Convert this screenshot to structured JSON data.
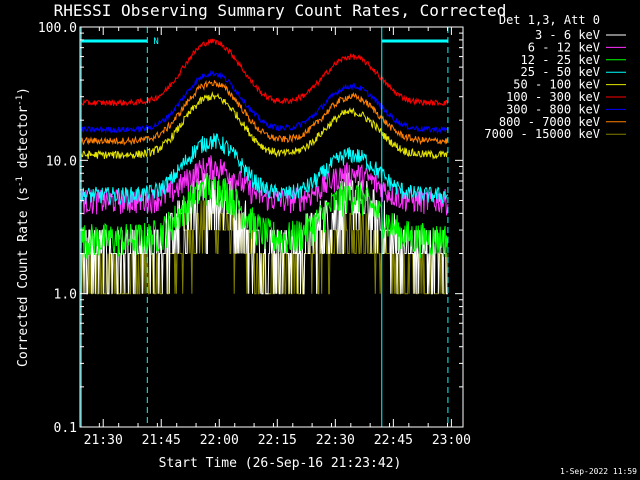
{
  "chart_data": {
    "type": "line",
    "title": "RHESSI Observing Summary Count Rates, Corrected",
    "xlabel": "Start Time (26-Sep-16 21:23:42)",
    "ylabel_main": "Corrected Count Rate (s",
    "ylabel_sup1": "-1",
    "ylabel_mid": " detector",
    "ylabel_sup2": "-1",
    "ylabel_end": ")",
    "y_scale": "log",
    "ylim": [
      0.1,
      100
    ],
    "xlim_minutes": [
      21.4,
      23.05
    ],
    "x_ticks": [
      {
        "label": "21:30",
        "value": 21.5
      },
      {
        "label": "21:45",
        "value": 21.75
      },
      {
        "label": "22:00",
        "value": 22.0
      },
      {
        "label": "22:15",
        "value": 22.25
      },
      {
        "label": "22:30",
        "value": 22.5
      },
      {
        "label": "22:45",
        "value": 22.75
      },
      {
        "label": "23:00",
        "value": 23.0
      }
    ],
    "y_ticks": [
      {
        "label": "100.0",
        "value": 100
      },
      {
        "label": "10.0",
        "value": 10
      },
      {
        "label": "1.0",
        "value": 1
      },
      {
        "label": "0.1",
        "value": 0.1
      }
    ],
    "legend_title": "Det 1,3, Att 0",
    "legend_position": "right",
    "date_stamp": "1-Sep-2022 11:59",
    "night_bar_label": "N",
    "vertical_markers": [
      {
        "x": 21.405,
        "style": "solid"
      },
      {
        "x": 21.69,
        "style": "dashed"
      },
      {
        "x": 22.7,
        "style": "solid"
      },
      {
        "x": 22.985,
        "style": "dashed"
      }
    ],
    "night_bars": [
      {
        "start": 21.405,
        "end": 21.69
      },
      {
        "start": 22.7,
        "end": 22.985
      }
    ],
    "series": [
      {
        "name": "3 - 6 keV",
        "color": "#ffffff",
        "base": 2.0,
        "peak1": 5.5,
        "peak2": 5.0,
        "noise": 0.55,
        "min": 1.0
      },
      {
        "name": "6 - 12 keV",
        "color": "#ff33ff",
        "base": 5.0,
        "peak1": 9.0,
        "peak2": 8.0,
        "noise": 0.22,
        "min": 1.0
      },
      {
        "name": "12 - 25 keV",
        "color": "#00ff00",
        "base": 2.6,
        "peak1": 6.5,
        "peak2": 5.5,
        "noise": 0.3,
        "min": 1.0
      },
      {
        "name": "25 - 50 keV",
        "color": "#00ffff",
        "base": 5.5,
        "peak1": 14.0,
        "peak2": 11.0,
        "noise": 0.15,
        "min": 1.0
      },
      {
        "name": "50 - 100 keV",
        "color": "#e6e600",
        "base": 11.0,
        "peak1": 30.0,
        "peak2": 23.0,
        "noise": 0.07,
        "min": 1.0
      },
      {
        "name": "100 - 300 keV",
        "color": "#ff0000",
        "base": 27.0,
        "peak1": 78.0,
        "peak2": 60.0,
        "noise": 0.05,
        "min": 1.0
      },
      {
        "name": "300 - 800 keV",
        "color": "#0000ff",
        "base": 17.0,
        "peak1": 45.0,
        "peak2": 36.0,
        "noise": 0.05,
        "min": 1.0
      },
      {
        "name": "800 - 7000 keV",
        "color": "#ff7f00",
        "base": 14.0,
        "peak1": 38.0,
        "peak2": 30.0,
        "noise": 0.06,
        "min": 1.0
      },
      {
        "name": "7000 - 15000 keV",
        "color": "#808000",
        "base": 1.4,
        "peak1": 3.5,
        "peak2": 3.0,
        "noise": 0.5,
        "min": 1.0
      }
    ]
  }
}
